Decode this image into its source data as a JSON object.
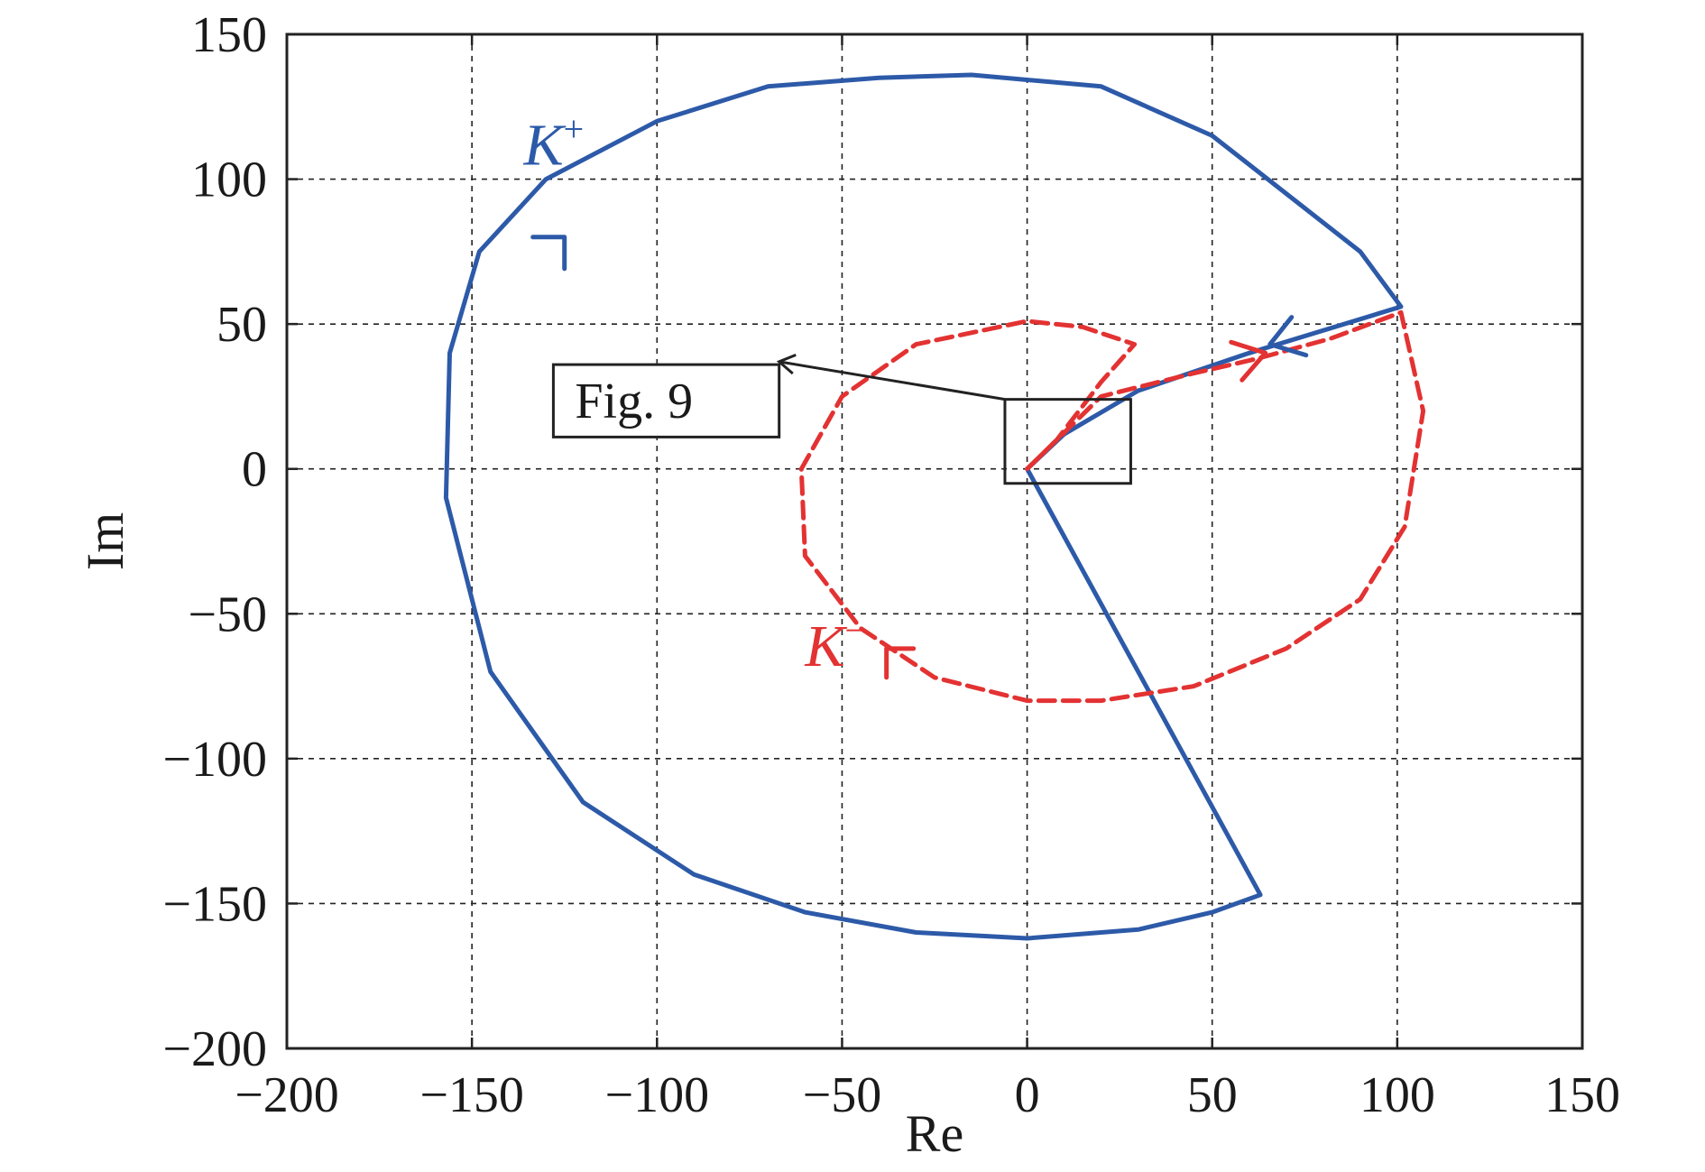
{
  "chart_data": {
    "type": "line",
    "title": "",
    "xlabel": "Re",
    "ylabel": "Im",
    "xlim": [
      -200,
      150
    ],
    "ylim": [
      -200,
      150
    ],
    "grid": true,
    "x_ticks": [
      -200,
      -150,
      -100,
      -50,
      0,
      50,
      100,
      150
    ],
    "y_ticks": [
      -200,
      -150,
      -100,
      -50,
      0,
      50,
      100,
      150
    ],
    "x_tick_labels": [
      "−200",
      "−150",
      "−100",
      "−50",
      "0",
      "50",
      "100",
      "150"
    ],
    "y_tick_labels": [
      "−200",
      "−150",
      "−100",
      "−50",
      "0",
      "50",
      "100",
      "150"
    ],
    "series": [
      {
        "name": "K+",
        "color": "#2d5aa8",
        "style": "solid",
        "x": [
          0,
          63,
          50,
          30,
          0,
          -30,
          -60,
          -90,
          -120,
          -145,
          -157,
          -156,
          -148,
          -130,
          -100,
          -70,
          -40,
          -15,
          20,
          50,
          70,
          90,
          101,
          60,
          30,
          10,
          0
        ],
        "y": [
          0,
          -147,
          -153,
          -159,
          -162,
          -160,
          -153,
          -140,
          -115,
          -70,
          -10,
          40,
          75,
          100,
          120,
          132,
          135,
          136,
          132,
          115,
          95,
          75,
          56,
          40,
          27,
          12,
          0
        ]
      },
      {
        "name": "K−",
        "color": "#e33232",
        "style": "dashed",
        "x": [
          0,
          20,
          45,
          62,
          82,
          101,
          107,
          102,
          90,
          70,
          45,
          20,
          0,
          -25,
          -45,
          -60,
          -61,
          -50,
          -30,
          0,
          15,
          29,
          20,
          8,
          0
        ],
        "y": [
          0,
          25,
          33,
          38,
          45,
          54,
          20,
          -20,
          -45,
          -62,
          -75,
          -80,
          -80,
          -72,
          -55,
          -30,
          0,
          25,
          43,
          51,
          49,
          43,
          30,
          10,
          0
        ]
      }
    ],
    "annotations": [
      {
        "label": "K",
        "sup": "+",
        "color": "#2d5aa8",
        "x": -136,
        "y": 105
      },
      {
        "label": "K",
        "sup": "−",
        "color": "#e33232",
        "x": -60,
        "y": -68
      },
      {
        "label": "Fig. 9",
        "box_x": [
          -128,
          -67
        ],
        "box_y": [
          11,
          36
        ],
        "arrow_from": [
          -6,
          24
        ],
        "arrow_to": [
          -67,
          37
        ]
      }
    ],
    "zoom_box": {
      "x": [
        -6,
        28
      ],
      "y": [
        -5,
        24
      ]
    },
    "direction_arrows": [
      {
        "series": "K+",
        "x": -125,
        "y": 80,
        "dir": "up-right"
      },
      {
        "series": "K+",
        "x": 70,
        "y": 43,
        "dir": "left"
      },
      {
        "series": "K−",
        "x": 60,
        "y": 40,
        "dir": "right"
      },
      {
        "series": "K−",
        "x": -38,
        "y": -62,
        "dir": "up-left"
      }
    ]
  }
}
